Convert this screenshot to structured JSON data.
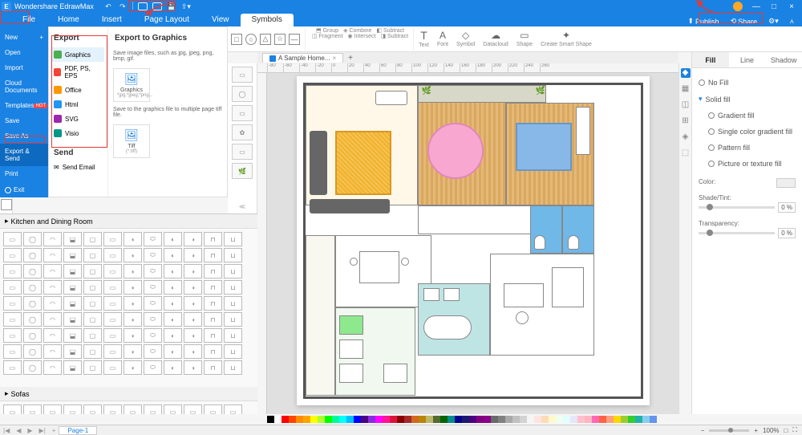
{
  "app": {
    "name": "Wondershare EdrawMax"
  },
  "window_controls": {
    "minimize": "—",
    "restore": "□",
    "close": "×"
  },
  "menubar": {
    "tabs": [
      "File",
      "Home",
      "Insert",
      "Page Layout",
      "View",
      "Symbols"
    ],
    "active": 5,
    "publish": "Publish",
    "share": "Share"
  },
  "file_menu": {
    "items": [
      {
        "label": "New",
        "icon": "+"
      },
      {
        "label": "Open"
      },
      {
        "label": "Import"
      },
      {
        "label": "Cloud Documents"
      },
      {
        "label": "Templates",
        "badge": "HOT"
      },
      {
        "label": "Save"
      },
      {
        "label": "Save As"
      },
      {
        "label": "Export & Send",
        "selected": true
      },
      {
        "label": "Print"
      }
    ],
    "exit": "Exit"
  },
  "export": {
    "title": "Export",
    "types": [
      {
        "label": "Graphics",
        "color": "#4caf50",
        "active": true
      },
      {
        "label": "PDF, PS, EPS",
        "color": "#f44336"
      },
      {
        "label": "Office",
        "color": "#ff9800"
      },
      {
        "label": "Html",
        "color": "#2196f3"
      },
      {
        "label": "SVG",
        "color": "#9c27b0"
      },
      {
        "label": "Visio",
        "color": "#009688"
      }
    ],
    "send_title": "Send",
    "send_email": "Send Email",
    "right_title": "Export to Graphics",
    "desc1": "Save image files, such as jpg, jpeg, png, bmp, gif.",
    "card1_label": "Graphics",
    "card1_sub": "*jpg;*jpeg;*png...",
    "desc2": "Save to the graphics file to multiple page tiff file.",
    "card2_label": "Tiff",
    "card2_sub": "(*.tiff)"
  },
  "shapes_panel": {
    "header": "Kitchen and Dining Room",
    "header2": "Sofas"
  },
  "doc": {
    "tab": "A Sample Home...",
    "plus": "+"
  },
  "ruler_ticks": [
    "-80",
    "-60",
    "-40",
    "-20",
    "0",
    "20",
    "40",
    "60",
    "80",
    "100",
    "120",
    "140",
    "160",
    "180",
    "200",
    "220",
    "240",
    "260"
  ],
  "prop": {
    "tabs": [
      "Fill",
      "Line",
      "Shadow"
    ],
    "active": 0,
    "nofill": "No Fill",
    "solid": "Solid fill",
    "gradient": "Gradient fill",
    "singlegrad": "Single color gradient fill",
    "pattern": "Pattern fill",
    "picture": "Picture or texture fill",
    "color_lbl": "Color:",
    "shade_lbl": "Shade/Tint:",
    "trans_lbl": "Transparency:",
    "shade_val": "0 %",
    "trans_val": "0 %"
  },
  "page_tabs": {
    "page": "Page-1"
  },
  "status": {
    "zoom": "100%",
    "pct": "—",
    "fit": "□",
    "full": "⛶"
  },
  "ribbon": {
    "shapes": [
      "□",
      "○",
      "△",
      "☆",
      "—"
    ],
    "group": "Group",
    "combine": "Combine",
    "subtract": "Subtract",
    "fragment": "Fragment",
    "intersect": "Intersect",
    "subtract2": "Subtract",
    "text": "Text",
    "font": "Font",
    "symbol": "Symbol",
    "datacloud": "Datacloud",
    "shape": "Shape",
    "smart": "Create Smart Shape"
  },
  "colorbar_colors": [
    "#000",
    "#fff",
    "#ff0000",
    "#ff4500",
    "#ff8c00",
    "#ffa500",
    "#ffff00",
    "#adff2f",
    "#00ff00",
    "#00fa9a",
    "#00ffff",
    "#00bfff",
    "#0000ff",
    "#4b0082",
    "#8a2be2",
    "#ff00ff",
    "#ff1493",
    "#dc143c",
    "#8b0000",
    "#a52a2a",
    "#d2691e",
    "#b8860b",
    "#bdb76b",
    "#556b2f",
    "#006400",
    "#008b8b",
    "#00008b",
    "#191970",
    "#4b0082",
    "#800080",
    "#8b008b",
    "#696969",
    "#808080",
    "#a9a9a9",
    "#c0c0c0",
    "#d3d3d3",
    "#f5f5f5",
    "#ffe4e1",
    "#ffdab9",
    "#fffacd",
    "#f0fff0",
    "#e0ffff",
    "#e6e6fa",
    "#ffc0cb",
    "#ffb6c1",
    "#ff69b4",
    "#ff6347",
    "#ffa07a",
    "#ffd700",
    "#9acd32",
    "#32cd32",
    "#20b2aa",
    "#87ceeb",
    "#6495ed"
  ]
}
